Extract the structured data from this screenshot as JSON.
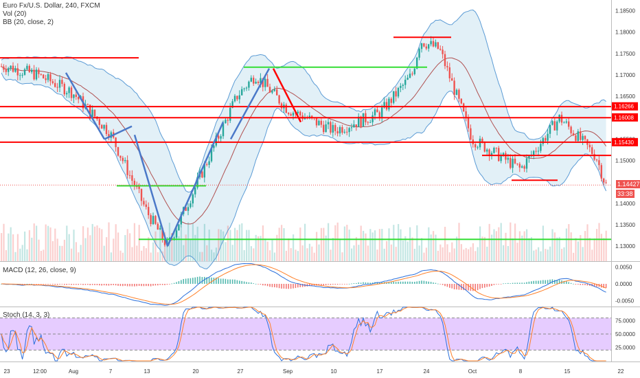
{
  "header": {
    "symbol_line": "Euro Fx/U.S. Dollar, 240, FXCM",
    "vol_line": "Vol (20)",
    "bb_line": "BB (20, close, 2)",
    "macd_line": "MACD (12, 26, close, 9)",
    "stoch_line": "Stoch (14, 3, 3)"
  },
  "price_tags": {
    "last": "1.14427",
    "countdown": "33:38"
  },
  "colors": {
    "up": "#26a69a",
    "down": "#ef5350",
    "band": "#5b9bd5",
    "band_fill": "#cfe6f2",
    "basis": "#b05050",
    "red_line": "#ff0000",
    "green_line": "#33dd33",
    "blue_line": "#4a78c8",
    "stoch_fill": "#e6ccff",
    "macd_line": "#2a6fdb",
    "signal_line": "#ff7f27"
  },
  "chart_data": [
    {
      "type": "candlestick",
      "title": "Euro Fx/U.S. Dollar, 240, FXCM",
      "x_tick_labels": [
        "23",
        "12:00",
        "Aug",
        "7",
        "13",
        "20",
        "27",
        "Sep",
        "10",
        "17",
        "24",
        "Oct",
        "8",
        "15",
        "22"
      ],
      "y_tick_labels": [
        "1.18500",
        "1.18000",
        "1.17500",
        "1.17000",
        "1.16500",
        "1.15500",
        "1.15000",
        "1.14000",
        "1.13500",
        "1.13000"
      ],
      "highlighted_levels": [
        "1.16266",
        "1.16008",
        "1.15430",
        "1.14427"
      ],
      "ylim": [
        1.1265,
        1.1875
      ],
      "close_path": [
        [
          "23",
          1.172
        ],
        [
          "12:00",
          1.17
        ],
        [
          "Aug",
          1.166
        ],
        [
          "7",
          1.1565
        ],
        [
          "13",
          1.138
        ],
        [
          "15",
          1.13
        ],
        [
          "20",
          1.144
        ],
        [
          "27",
          1.165
        ],
        [
          "28",
          1.17
        ],
        [
          "Sep",
          1.162
        ],
        [
          "10",
          1.157
        ],
        [
          "17",
          1.161
        ],
        [
          "20",
          1.17
        ],
        [
          "21",
          1.178
        ],
        [
          "24",
          1.176
        ],
        [
          "Oct",
          1.155
        ],
        [
          "8",
          1.148
        ],
        [
          "15",
          1.16
        ],
        [
          "19",
          1.151
        ],
        [
          "22",
          1.1443
        ]
      ],
      "resistance_lines": [
        1.174,
        1.1626,
        1.16,
        1.1543,
        1.1512
      ],
      "support_lines": [
        1.1718,
        1.1441,
        1.1316,
        1.146
      ]
    },
    {
      "type": "line",
      "title": "MACD (12, 26, close, 9)",
      "y_tick_labels": [
        "0.0050",
        "0.0000",
        "-0.0050"
      ],
      "ylim": [
        -0.0065,
        0.0065
      ]
    },
    {
      "type": "line",
      "title": "Stoch (14, 3, 3)",
      "y_tick_labels": [
        "75.0000",
        "50.0000",
        "25.0000"
      ],
      "ylim": [
        0,
        100
      ],
      "band": [
        20,
        80
      ]
    }
  ]
}
